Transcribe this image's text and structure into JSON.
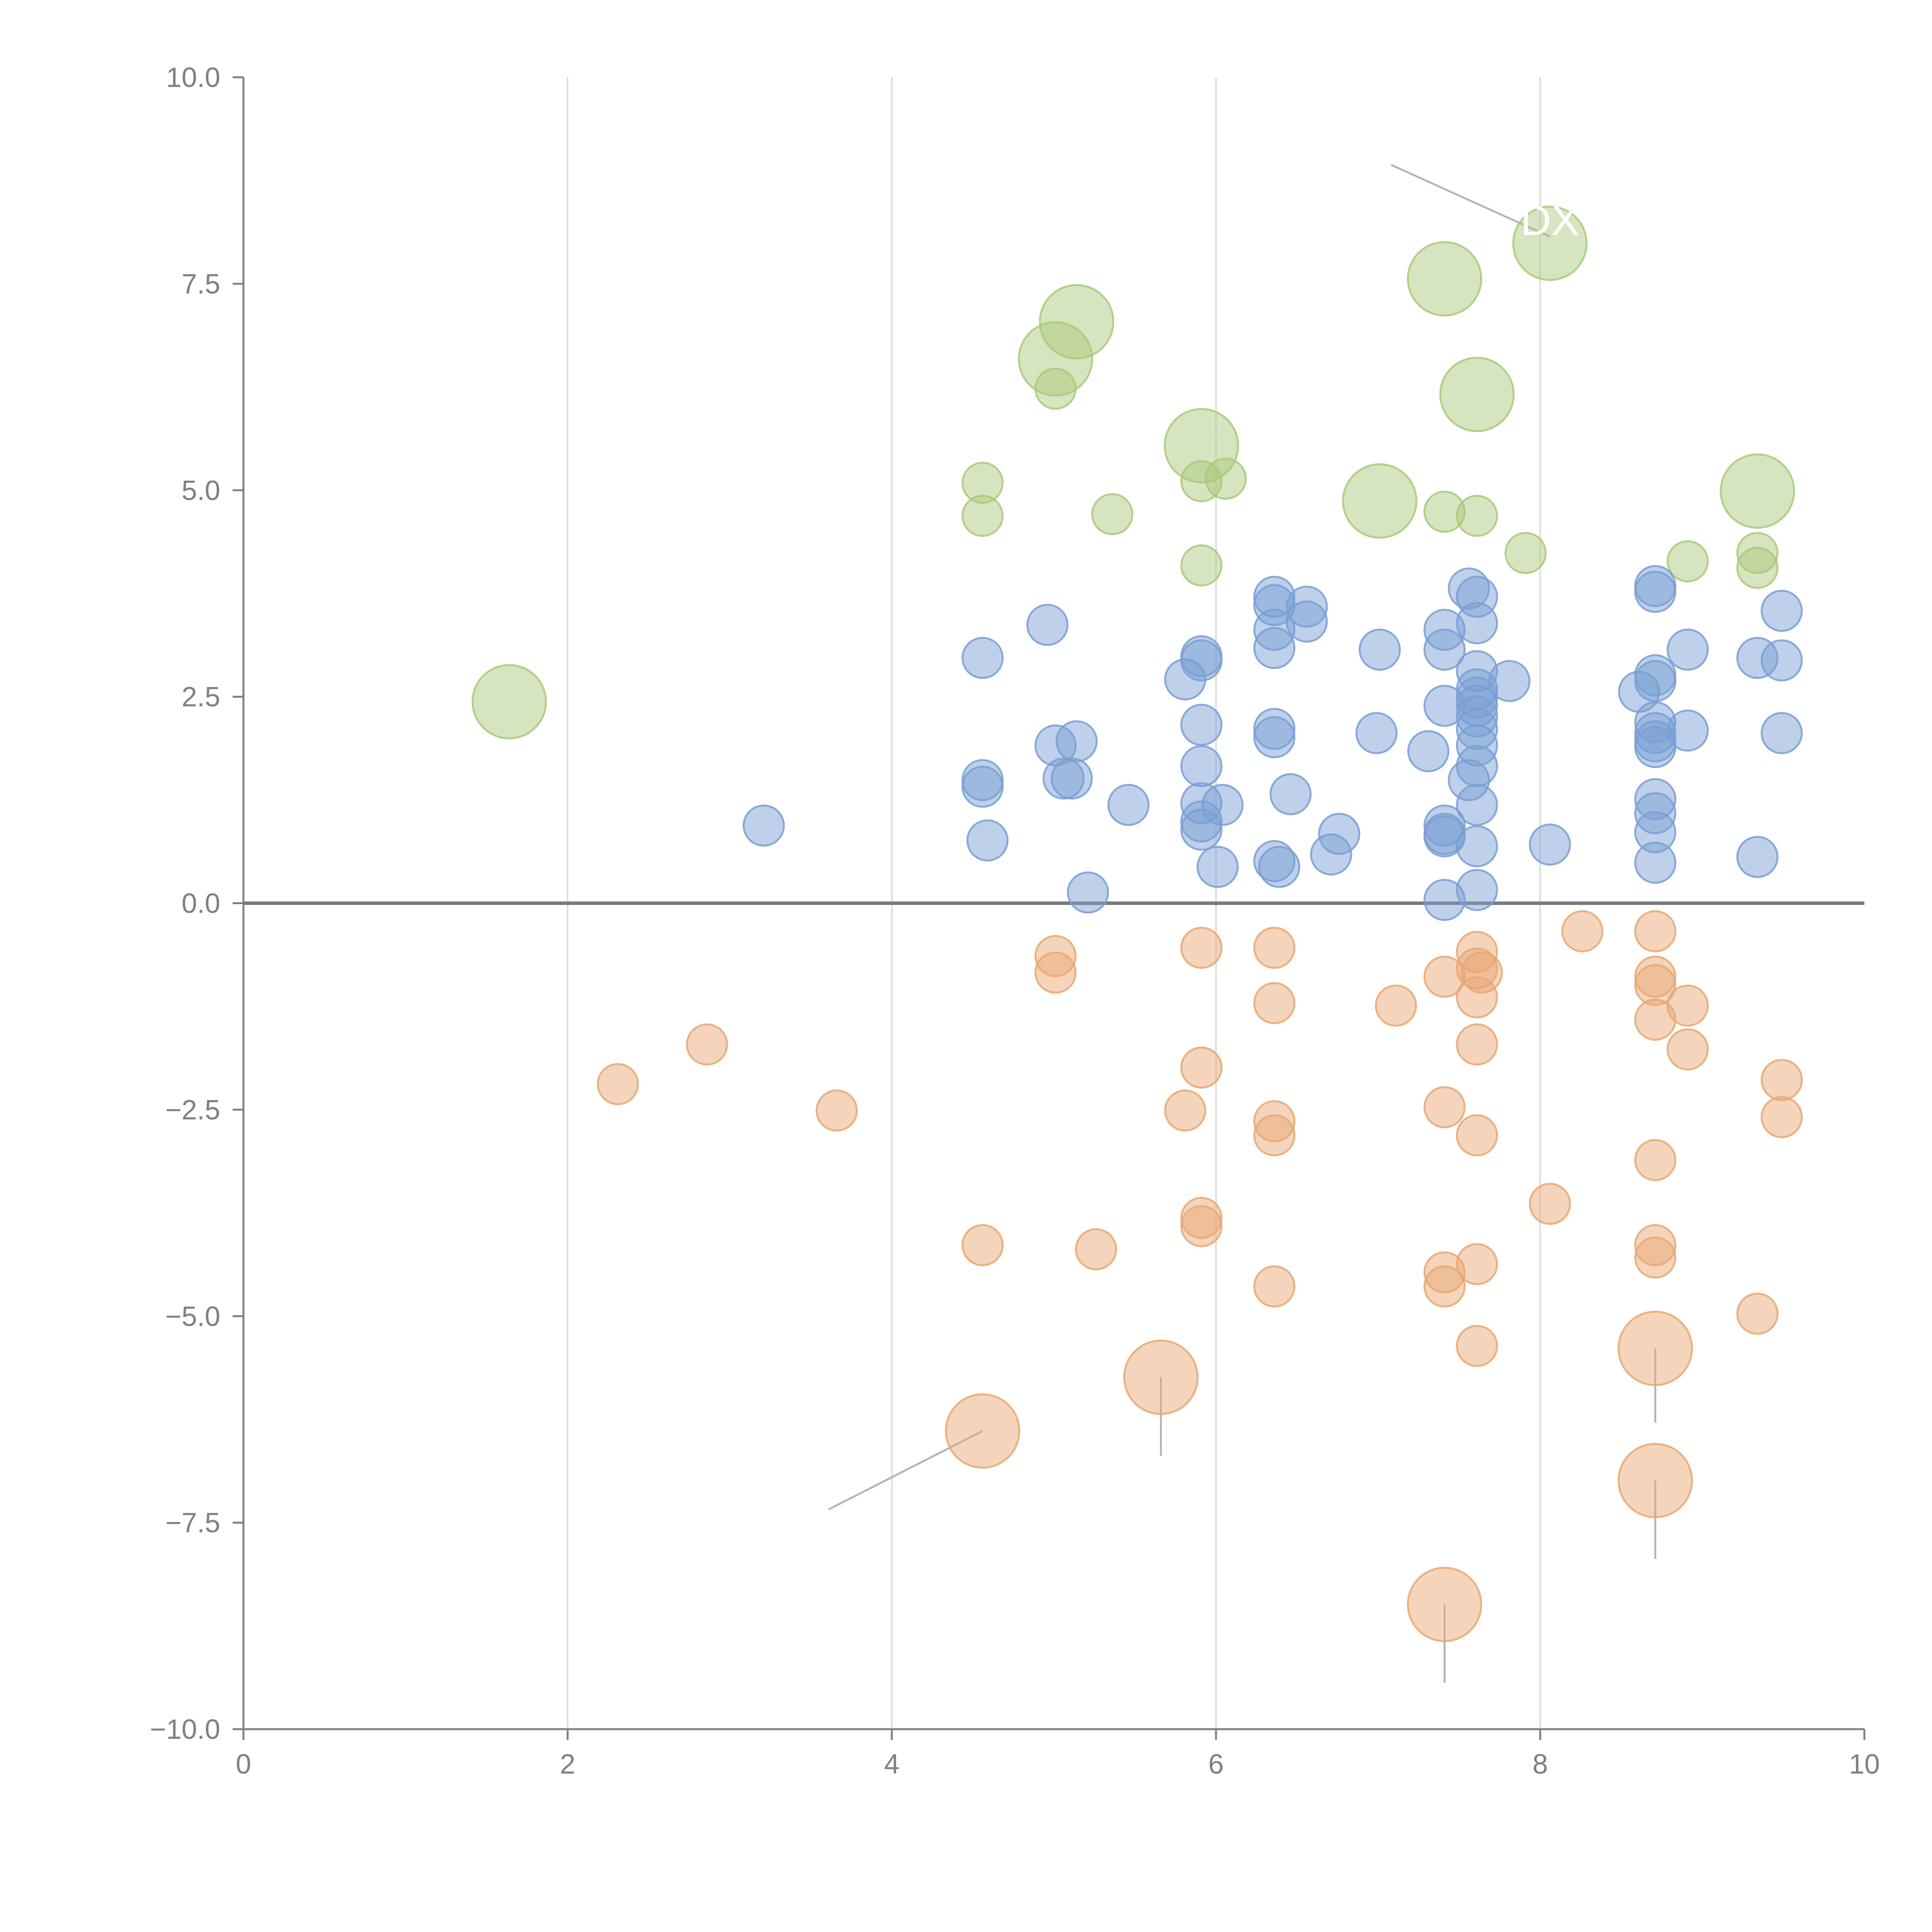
{
  "chart_data": {
    "type": "scatter",
    "title": "",
    "xlabel": "",
    "ylabel": "",
    "xlim": [
      0,
      10
    ],
    "ylim": [
      -10,
      10
    ],
    "grid": "vertical",
    "x_ticks": [
      "0",
      "2",
      "4",
      "6",
      "8",
      "10"
    ],
    "y_ticks": [
      "10.0",
      "7.5",
      "5.0",
      "2.5",
      "0.0",
      "−2.5",
      "−5.0",
      "−7.5",
      "−10.0"
    ],
    "colors": {
      "green": "#a9c97a",
      "blue": "#7a9ed4",
      "orange": "#e8a772",
      "leader": "#b4b4b4"
    },
    "series": [
      {
        "name": "green",
        "color": "#a9c97a",
        "points": [
          [
            1.64,
            2.44,
            3
          ],
          [
            4.56,
            5.09,
            1
          ],
          [
            4.56,
            4.69,
            1
          ],
          [
            5.01,
            6.23,
            1
          ],
          [
            5.01,
            6.59,
            3
          ],
          [
            5.14,
            7.04,
            3
          ],
          [
            5.36,
            4.71,
            1
          ],
          [
            5.91,
            5.54,
            3
          ],
          [
            5.91,
            5.11,
            1
          ],
          [
            5.91,
            4.09,
            1
          ],
          [
            6.06,
            5.14,
            1
          ],
          [
            7.01,
            4.87,
            3
          ],
          [
            7.41,
            7.56,
            3
          ],
          [
            7.41,
            4.74,
            1
          ],
          [
            7.61,
            6.16,
            3
          ],
          [
            7.61,
            4.69,
            1
          ],
          [
            7.91,
            4.24,
            1
          ],
          [
            8.06,
            7.99,
            3
          ],
          [
            8.91,
            4.14,
            1
          ],
          [
            9.34,
            4.99,
            3
          ],
          [
            9.34,
            4.24,
            1
          ],
          [
            9.34,
            4.06,
            1
          ]
        ]
      },
      {
        "name": "blue",
        "color": "#7a9ed4",
        "points": [
          [
            3.21,
            0.94,
            1
          ],
          [
            4.56,
            2.97,
            1
          ],
          [
            4.56,
            1.49,
            1
          ],
          [
            4.56,
            1.41,
            1
          ],
          [
            4.59,
            0.76,
            1
          ],
          [
            4.96,
            3.37,
            1
          ],
          [
            5.01,
            1.91,
            1
          ],
          [
            5.06,
            1.51,
            1
          ],
          [
            5.11,
            1.51,
            1
          ],
          [
            5.14,
            1.96,
            1
          ],
          [
            5.21,
            0.13,
            1
          ],
          [
            5.46,
            1.19,
            1
          ],
          [
            5.81,
            2.71,
            1
          ],
          [
            5.91,
            2.99,
            1
          ],
          [
            5.91,
            2.94,
            1
          ],
          [
            5.91,
            2.16,
            1
          ],
          [
            5.91,
            1.66,
            1
          ],
          [
            5.91,
            1.21,
            1
          ],
          [
            5.91,
            0.99,
            1
          ],
          [
            5.91,
            0.89,
            1
          ],
          [
            6.01,
            0.44,
            1
          ],
          [
            6.04,
            1.19,
            1
          ],
          [
            6.36,
            3.71,
            1
          ],
          [
            6.36,
            3.61,
            1
          ],
          [
            6.36,
            3.31,
            1
          ],
          [
            6.36,
            3.09,
            1
          ],
          [
            6.36,
            2.11,
            1
          ],
          [
            6.36,
            2.01,
            1
          ],
          [
            6.36,
            0.51,
            1
          ],
          [
            6.39,
            0.44,
            1
          ],
          [
            6.46,
            1.32,
            1
          ],
          [
            6.56,
            3.59,
            1
          ],
          [
            6.56,
            3.41,
            1
          ],
          [
            6.71,
            0.59,
            1
          ],
          [
            6.76,
            0.84,
            1
          ],
          [
            6.99,
            2.06,
            1
          ],
          [
            7.01,
            3.07,
            1
          ],
          [
            7.31,
            1.84,
            1
          ],
          [
            7.41,
            3.31,
            1
          ],
          [
            7.41,
            3.07,
            1
          ],
          [
            7.41,
            2.39,
            1
          ],
          [
            7.41,
            0.94,
            1
          ],
          [
            7.41,
            0.84,
            1
          ],
          [
            7.41,
            0.81,
            1
          ],
          [
            7.41,
            0.04,
            1
          ],
          [
            7.56,
            3.81,
            1
          ],
          [
            7.56,
            1.49,
            1
          ],
          [
            7.61,
            3.71,
            1
          ],
          [
            7.61,
            3.39,
            1
          ],
          [
            7.61,
            2.81,
            1
          ],
          [
            7.61,
            2.59,
            1
          ],
          [
            7.61,
            2.49,
            1
          ],
          [
            7.61,
            2.39,
            1
          ],
          [
            7.61,
            2.26,
            1
          ],
          [
            7.61,
            2.11,
            1
          ],
          [
            7.61,
            1.91,
            1
          ],
          [
            7.61,
            1.66,
            1
          ],
          [
            7.61,
            1.19,
            1
          ],
          [
            7.61,
            0.69,
            1
          ],
          [
            7.61,
            0.16,
            1
          ],
          [
            7.81,
            2.69,
            1
          ],
          [
            8.06,
            0.71,
            1
          ],
          [
            8.61,
            2.56,
            1
          ],
          [
            8.71,
            3.84,
            1
          ],
          [
            8.71,
            3.77,
            1
          ],
          [
            8.71,
            2.76,
            1
          ],
          [
            8.71,
            2.69,
            1
          ],
          [
            8.71,
            2.19,
            1
          ],
          [
            8.71,
            2.06,
            1
          ],
          [
            8.71,
            1.96,
            1
          ],
          [
            8.71,
            1.89,
            1
          ],
          [
            8.71,
            1.26,
            1
          ],
          [
            8.71,
            1.09,
            1
          ],
          [
            8.71,
            0.86,
            1
          ],
          [
            8.71,
            0.49,
            1
          ],
          [
            8.91,
            3.07,
            1
          ],
          [
            8.91,
            2.09,
            1
          ],
          [
            9.34,
            2.97,
            1
          ],
          [
            9.34,
            0.56,
            1
          ],
          [
            9.49,
            3.54,
            1
          ],
          [
            9.49,
            2.94,
            1
          ],
          [
            9.49,
            2.06,
            1
          ]
        ]
      },
      {
        "name": "orange",
        "color": "#e8a772",
        "points": [
          [
            2.31,
            -2.19,
            1
          ],
          [
            2.86,
            -1.71,
            1
          ],
          [
            3.66,
            -2.51,
            1
          ],
          [
            4.56,
            -4.14,
            1
          ],
          [
            4.56,
            -6.39,
            3
          ],
          [
            5.01,
            -0.64,
            1
          ],
          [
            5.01,
            -0.84,
            1
          ],
          [
            5.26,
            -4.19,
            1
          ],
          [
            5.66,
            -5.74,
            3
          ],
          [
            5.81,
            -2.51,
            1
          ],
          [
            5.91,
            -0.54,
            1
          ],
          [
            5.91,
            -1.99,
            1
          ],
          [
            5.91,
            -3.81,
            1
          ],
          [
            5.91,
            -3.91,
            1
          ],
          [
            6.36,
            -0.54,
            1
          ],
          [
            6.36,
            -1.21,
            1
          ],
          [
            6.36,
            -2.64,
            1
          ],
          [
            6.36,
            -2.81,
            1
          ],
          [
            6.36,
            -4.64,
            1
          ],
          [
            7.11,
            -1.24,
            1
          ],
          [
            7.41,
            -0.89,
            1
          ],
          [
            7.41,
            -2.47,
            1
          ],
          [
            7.41,
            -4.47,
            1
          ],
          [
            7.41,
            -4.64,
            1
          ],
          [
            7.41,
            -8.49,
            3
          ],
          [
            7.61,
            -0.59,
            1
          ],
          [
            7.61,
            -0.79,
            1
          ],
          [
            7.64,
            -0.84,
            1
          ],
          [
            7.61,
            -1.14,
            1
          ],
          [
            7.61,
            -1.71,
            1
          ],
          [
            7.61,
            -2.81,
            1
          ],
          [
            7.61,
            -4.37,
            1
          ],
          [
            7.61,
            -5.36,
            1
          ],
          [
            8.06,
            -3.64,
            1
          ],
          [
            8.26,
            -0.34,
            1
          ],
          [
            8.71,
            -0.34,
            1
          ],
          [
            8.71,
            -0.89,
            1
          ],
          [
            8.71,
            -0.99,
            1
          ],
          [
            8.71,
            -1.41,
            1
          ],
          [
            8.71,
            -3.11,
            1
          ],
          [
            8.71,
            -4.14,
            1
          ],
          [
            8.71,
            -4.29,
            1
          ],
          [
            8.71,
            -5.39,
            3
          ],
          [
            8.71,
            -6.99,
            3
          ],
          [
            8.91,
            -1.24,
            1
          ],
          [
            8.91,
            -1.77,
            1
          ],
          [
            9.34,
            -4.97,
            1
          ],
          [
            9.49,
            -2.14,
            1
          ],
          [
            9.49,
            -2.59,
            1
          ]
        ]
      }
    ],
    "annotations": [
      {
        "text": "DX",
        "x": 8.06,
        "y": 8.27,
        "point": [
          8.06,
          7.99
        ]
      }
    ]
  }
}
